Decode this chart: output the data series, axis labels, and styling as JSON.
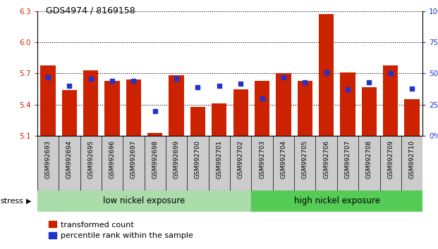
{
  "title": "GDS4974 / 8169158",
  "samples": [
    "GSM992693",
    "GSM992694",
    "GSM992695",
    "GSM992696",
    "GSM992697",
    "GSM992698",
    "GSM992699",
    "GSM992700",
    "GSM992701",
    "GSM992702",
    "GSM992703",
    "GSM992704",
    "GSM992705",
    "GSM992706",
    "GSM992707",
    "GSM992708",
    "GSM992709",
    "GSM992710"
  ],
  "transformed_count": [
    5.78,
    5.54,
    5.73,
    5.63,
    5.64,
    5.13,
    5.68,
    5.38,
    5.41,
    5.55,
    5.63,
    5.7,
    5.63,
    6.27,
    5.71,
    5.57,
    5.78,
    5.45
  ],
  "percentile_rank": [
    47,
    40,
    46,
    44,
    44,
    20,
    46,
    39,
    40,
    42,
    30,
    47,
    43,
    51,
    37,
    43,
    50,
    38
  ],
  "ylim_left": [
    5.1,
    6.3
  ],
  "ylim_right": [
    0,
    100
  ],
  "yticks_left": [
    5.1,
    5.4,
    5.7,
    6.0,
    6.3
  ],
  "yticks_right": [
    0,
    25,
    50,
    75,
    100
  ],
  "ytick_labels_right": [
    "0%",
    "25%",
    "50%",
    "75%",
    "100%"
  ],
  "bar_color": "#cc2200",
  "blue_color": "#2233cc",
  "background_color": "#ffffff",
  "tick_label_color_left": "#cc2200",
  "tick_label_color_right": "#2233cc",
  "low_exposure_label": "low nickel exposure",
  "high_exposure_label": "high nickel exposure",
  "n_low": 10,
  "n_high": 8,
  "stress_label": "stress",
  "legend1": "transformed count",
  "legend2": "percentile rank within the sample",
  "base_value": 5.1,
  "low_color": "#aaddaa",
  "high_color": "#55cc55",
  "xtick_bg": "#cccccc"
}
